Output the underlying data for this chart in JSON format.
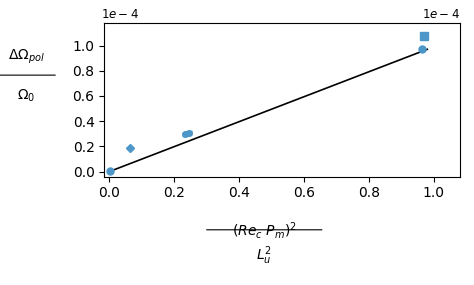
{
  "xlabel_line1": "$(Re_c\\ P_m)^2$",
  "xlabel_line2": "$L_u^2$",
  "ylabel_line1": "$\\Delta\\Omega_{pol}$",
  "ylabel_line2": "$\\Omega_0$",
  "scatter_x": [
    2e-07,
    6.5e-06,
    2.35e-05,
    2.45e-05,
    9.65e-05,
    9.7e-05
  ],
  "scatter_y": [
    5e-07,
    1.9e-05,
    2.95e-05,
    3.1e-05,
    9.7e-05,
    0.0001075
  ],
  "markers": [
    "o",
    "D",
    "o",
    "o",
    "o",
    "s"
  ],
  "marker_sizes": [
    5,
    4,
    4,
    4,
    5,
    6
  ],
  "scatter_yerr": [
    0.0,
    6e-07,
    1.5e-06,
    1.5e-06,
    8e-07,
    0.0
  ],
  "line_x": [
    0.0,
    9.8e-05
  ],
  "line_y": [
    0.0,
    9.7e-05
  ],
  "marker_color": "#4c96c8",
  "line_color": "black",
  "xlim": [
    -1.5e-06,
    0.000108
  ],
  "ylim": [
    -4e-06,
    0.000118
  ],
  "figsize": [
    4.74,
    2.85
  ],
  "dpi": 100
}
